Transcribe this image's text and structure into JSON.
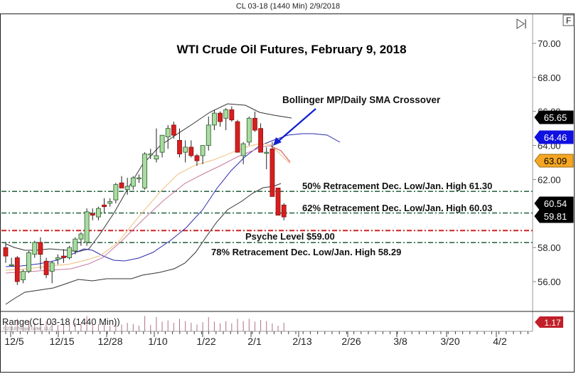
{
  "window": {
    "title": "CL 03-18 (1440 Min)  2/9/2018"
  },
  "toolbar": {
    "scroll_end_icon": "skip-to-end-icon",
    "f_button_label": "F"
  },
  "chart_data": {
    "type": "candlestick",
    "title": "WTI Crude Oil Futures, February 9, 2018",
    "instrument": "CL 03-18 (1440 Min)",
    "xlabel": "",
    "ylabel": "",
    "ylim": [
      54.5,
      71
    ],
    "y_ticks": [
      "70.00",
      "68.00",
      "66.00",
      "64.00",
      "62.00",
      "58.00",
      "56.00"
    ],
    "x_ticks": [
      "12/5",
      "12/15",
      "12/28",
      "1/10",
      "1/22",
      "2/1",
      "2/13",
      "2/26",
      "3/8",
      "3/20",
      "4/2"
    ],
    "price_markers": [
      {
        "value": "65.65",
        "color": "#000000",
        "text_color": "#ffffff"
      },
      {
        "value": "64.46",
        "color": "#1010e0",
        "text_color": "#ffffff"
      },
      {
        "value": "63.09",
        "color": "#f5a623",
        "text_color": "#000000"
      },
      {
        "value": "60.54",
        "color": "#000000",
        "text_color": "#ffffff"
      },
      {
        "value": "59.81",
        "color": "#000000",
        "text_color": "#ffffff"
      }
    ],
    "candles": [
      {
        "o": 58.0,
        "h": 58.3,
        "l": 57.1,
        "c": 57.5
      },
      {
        "o": 57.0,
        "h": 57.4,
        "l": 56.9,
        "c": 57.0
      },
      {
        "o": 57.4,
        "h": 57.5,
        "l": 55.8,
        "c": 56.0
      },
      {
        "o": 56.1,
        "h": 56.7,
        "l": 55.9,
        "c": 56.6
      },
      {
        "o": 56.6,
        "h": 57.8,
        "l": 56.5,
        "c": 57.7
      },
      {
        "o": 57.6,
        "h": 58.4,
        "l": 57.4,
        "c": 58.3
      },
      {
        "o": 58.3,
        "h": 58.6,
        "l": 56.7,
        "c": 57.6
      },
      {
        "o": 57.2,
        "h": 57.4,
        "l": 56.2,
        "c": 56.4
      },
      {
        "o": 56.6,
        "h": 57.2,
        "l": 55.9,
        "c": 57.1
      },
      {
        "o": 57.3,
        "h": 57.6,
        "l": 57.0,
        "c": 57.4
      },
      {
        "o": 57.5,
        "h": 57.9,
        "l": 57.1,
        "c": 57.4
      },
      {
        "o": 57.4,
        "h": 58.1,
        "l": 57.3,
        "c": 58.0
      },
      {
        "o": 57.8,
        "h": 58.6,
        "l": 57.6,
        "c": 58.5
      },
      {
        "o": 58.5,
        "h": 58.9,
        "l": 58.1,
        "c": 58.8
      },
      {
        "o": 58.3,
        "h": 60.3,
        "l": 58.1,
        "c": 60.1
      },
      {
        "o": 60.0,
        "h": 60.3,
        "l": 59.6,
        "c": 59.9
      },
      {
        "o": 59.8,
        "h": 60.4,
        "l": 59.6,
        "c": 60.3
      },
      {
        "o": 60.5,
        "h": 60.9,
        "l": 60.0,
        "c": 60.4
      },
      {
        "o": 60.6,
        "h": 60.9,
        "l": 60.4,
        "c": 60.7
      },
      {
        "o": 60.8,
        "h": 61.8,
        "l": 60.6,
        "c": 61.7
      },
      {
        "o": 61.8,
        "h": 62.2,
        "l": 61.5,
        "c": 61.5
      },
      {
        "o": 61.4,
        "h": 62.1,
        "l": 61.1,
        "c": 61.6
      },
      {
        "o": 61.6,
        "h": 62.2,
        "l": 61.4,
        "c": 62.1
      },
      {
        "o": 62.1,
        "h": 62.3,
        "l": 61.8,
        "c": 62.1
      },
      {
        "o": 61.5,
        "h": 63.6,
        "l": 61.4,
        "c": 63.5
      },
      {
        "o": 63.5,
        "h": 63.8,
        "l": 63.2,
        "c": 63.5
      },
      {
        "o": 63.2,
        "h": 65.0,
        "l": 63.0,
        "c": 63.4
      },
      {
        "o": 63.6,
        "h": 64.5,
        "l": 63.3,
        "c": 64.6
      },
      {
        "o": 64.5,
        "h": 65.2,
        "l": 63.8,
        "c": 65.0
      },
      {
        "o": 65.2,
        "h": 65.4,
        "l": 64.4,
        "c": 64.6
      },
      {
        "o": 64.3,
        "h": 65.0,
        "l": 63.3,
        "c": 63.5
      },
      {
        "o": 63.6,
        "h": 64.3,
        "l": 63.0,
        "c": 63.9
      },
      {
        "o": 63.9,
        "h": 64.3,
        "l": 63.3,
        "c": 63.4
      },
      {
        "o": 63.4,
        "h": 63.5,
        "l": 62.8,
        "c": 63.1
      },
      {
        "o": 63.4,
        "h": 64.0,
        "l": 62.9,
        "c": 64.0
      },
      {
        "o": 64.0,
        "h": 65.7,
        "l": 63.7,
        "c": 65.2
      },
      {
        "o": 65.2,
        "h": 66.1,
        "l": 64.9,
        "c": 65.9
      },
      {
        "o": 65.9,
        "h": 66.0,
        "l": 65.1,
        "c": 65.4
      },
      {
        "o": 65.6,
        "h": 66.2,
        "l": 64.9,
        "c": 66.1
      },
      {
        "o": 66.1,
        "h": 66.3,
        "l": 65.4,
        "c": 65.5
      },
      {
        "o": 65.4,
        "h": 65.5,
        "l": 63.8,
        "c": 63.6
      },
      {
        "o": 63.4,
        "h": 64.2,
        "l": 62.9,
        "c": 64.1
      },
      {
        "o": 64.2,
        "h": 65.7,
        "l": 64.0,
        "c": 65.6
      },
      {
        "o": 65.6,
        "h": 66.0,
        "l": 64.8,
        "c": 64.9
      },
      {
        "o": 65.0,
        "h": 65.3,
        "l": 63.8,
        "c": 63.6
      },
      {
        "o": 63.6,
        "h": 63.9,
        "l": 62.6,
        "c": 63.6
      },
      {
        "o": 63.8,
        "h": 64.2,
        "l": 63.3,
        "c": 61.0
      },
      {
        "o": 61.5,
        "h": 61.4,
        "l": 60.9,
        "c": 59.9
      },
      {
        "o": 60.5,
        "h": 60.6,
        "l": 59.6,
        "c": 59.8
      }
    ],
    "series": [
      {
        "name": "Bollinger Upper",
        "color": "#333333"
      },
      {
        "name": "Bollinger Middle",
        "color": "#2b2bb0"
      },
      {
        "name": "Bollinger Lower",
        "color": "#333333"
      },
      {
        "name": "SMA Fast",
        "color": "#f0c890"
      },
      {
        "name": "SMA Slow",
        "color": "#c878a0"
      },
      {
        "name": "SMA Daily Red",
        "color": "#d86060"
      }
    ],
    "horizontal_levels": [
      {
        "label": "50% Retracement Dec. Low/Jan. High 61.30",
        "value": 61.3,
        "color": "#2e6b4a",
        "style": "dashdot"
      },
      {
        "label": "62% Retracement Dec. Low/Jan. High 60.03",
        "value": 60.03,
        "color": "#2e6b4a",
        "style": "dashdot"
      },
      {
        "label": "Psyche Level $59.00",
        "value": 59.0,
        "color": "#d02020",
        "style": "dashdot"
      },
      {
        "label": "78% Retracement Dec. Low/Jan. High 58.29",
        "value": 58.29,
        "color": "#2e6b4a",
        "style": "dashdot"
      }
    ],
    "annotations": [
      {
        "text": "Bollinger MP/Daily SMA Crossover",
        "arrow_color": "#1020d0"
      }
    ],
    "sub_panel": {
      "title": "Range(CL 03-18 (1440 Min))",
      "current_value": "1.17",
      "marker_color": "#c0202a",
      "copyright": "©2018 NinjaTrader, LLC"
    },
    "grid": false,
    "legend_position": "none"
  }
}
